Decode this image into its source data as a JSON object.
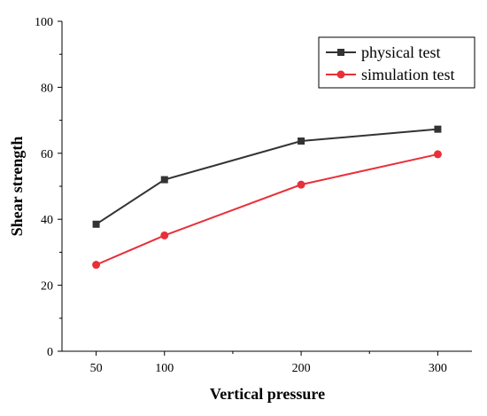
{
  "chart_data": {
    "type": "line",
    "title": "",
    "xlabel": "Vertical pressure",
    "ylabel": "Shear strength",
    "x": [
      50,
      100,
      200,
      300
    ],
    "x_tick_labels": [
      "50",
      "100",
      "200",
      "300"
    ],
    "y_tick_labels": [
      "0",
      "20",
      "40",
      "60",
      "80",
      "100"
    ],
    "xlim": [
      25,
      325
    ],
    "ylim": [
      0,
      100
    ],
    "grid": false,
    "legend_position": "top-right",
    "series": [
      {
        "name": "physical test",
        "values": [
          38.5,
          52,
          63.7,
          67.3
        ],
        "color": "#333333",
        "marker": "square"
      },
      {
        "name": "simulation test",
        "values": [
          26.2,
          35.1,
          50.5,
          59.7
        ],
        "color": "#e8303a",
        "marker": "circle"
      }
    ]
  }
}
